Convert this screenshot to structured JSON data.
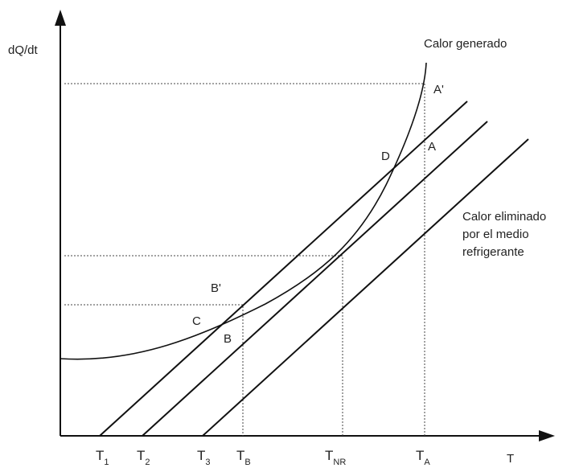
{
  "axes": {
    "y_label": "dQ/dt",
    "x_label": "T"
  },
  "curve_labels": {
    "generated_heat": "Calor generado",
    "removed_heat": [
      "Calor eliminado",
      "por el medio",
      "refrigerante"
    ]
  },
  "points": {
    "a_prime": "A'",
    "a": "A",
    "d": "D",
    "b_prime": "B'",
    "c": "C",
    "b": "B"
  },
  "x_ticks": [
    {
      "main": "T",
      "sub": "1"
    },
    {
      "main": "T",
      "sub": "2"
    },
    {
      "main": "T",
      "sub": "3"
    },
    {
      "main": "T",
      "sub": "B"
    },
    {
      "main": "T",
      "sub": "NR"
    },
    {
      "main": "T",
      "sub": "A"
    }
  ],
  "colors": {
    "ink": "#111111",
    "background": "#ffffff"
  }
}
